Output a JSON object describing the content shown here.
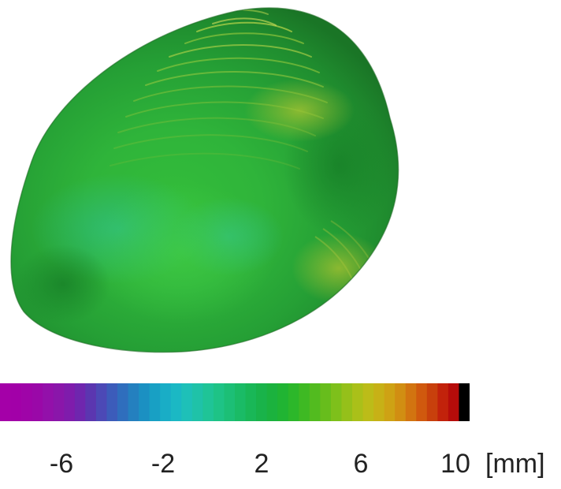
{
  "colorbar": {
    "ticks": [
      "-6",
      "-2",
      "2",
      "6",
      "10"
    ],
    "unit": "[mm]",
    "segment_colors": [
      "#a400a8",
      "#a200a8",
      "#9f04a8",
      "#9a08a8",
      "#9310aa",
      "#8a16aa",
      "#7f1cac",
      "#6f26ae",
      "#5b36b0",
      "#4c49b6",
      "#3c5cba",
      "#2f6ebd",
      "#2480bf",
      "#1b90c2",
      "#18a0c4",
      "#19adc6",
      "#1bb8c4",
      "#1ec0b8",
      "#1fc2a8",
      "#1fc497",
      "#1ec386",
      "#1cbf76",
      "#1abb66",
      "#19b757",
      "#19b34a",
      "#1bb23e",
      "#20b433",
      "#2cb72a",
      "#3eb923",
      "#52bb1f",
      "#67bd1c",
      "#7ec01b",
      "#95c01a",
      "#aac019",
      "#bcbc18",
      "#c7b116",
      "#cea214",
      "#d18e12",
      "#d27410",
      "#d0590e",
      "#c8400c",
      "#c2220b",
      "#b60c0a",
      "#000000"
    ]
  }
}
